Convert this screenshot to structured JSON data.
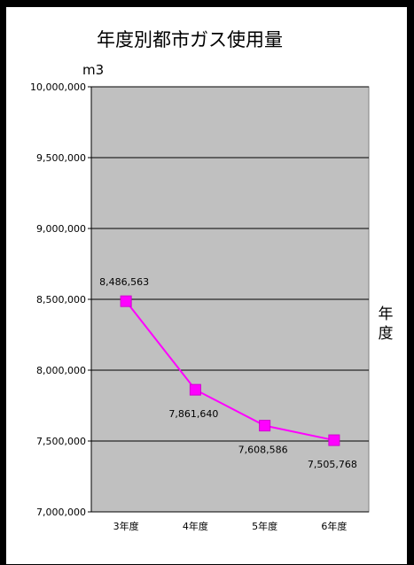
{
  "chart_data": {
    "type": "line",
    "title": "年度別都市ガス使用量",
    "ylabel": "m3",
    "xlabel": "年度",
    "categories": [
      "3年度",
      "4年度",
      "5年度",
      "6年度"
    ],
    "series": [
      {
        "values": [
          8486563,
          7861640,
          7608586,
          7505768
        ]
      }
    ],
    "data_labels": [
      "8,486,563",
      "7,861,640",
      "7,608,586",
      "7,505,768"
    ],
    "ylim": [
      7000000,
      10000000
    ],
    "yticks": [
      7000000,
      7500000,
      8000000,
      8500000,
      9000000,
      9500000,
      10000000
    ],
    "ytick_labels": [
      "7,000,000",
      "7,500,000",
      "8,000,000",
      "8,500,000",
      "9,000,000",
      "9,500,000",
      "10,000,000"
    ],
    "grid": true,
    "legend": "none",
    "colors": {
      "line": "#ff00ff",
      "marker": "#ff00ff",
      "plot_background": "#c0c0c0",
      "gridline": "#000000",
      "frame_background": "#000000",
      "chart_background": "#ffffff"
    }
  }
}
